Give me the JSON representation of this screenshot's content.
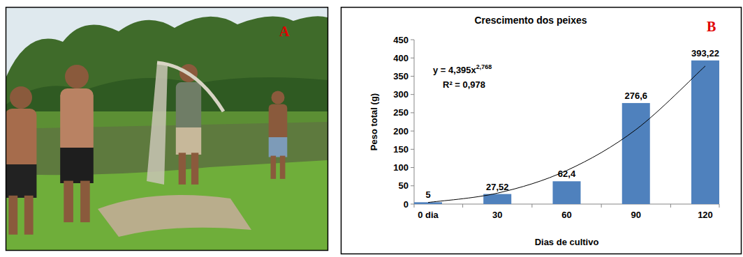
{
  "photo": {
    "label": "A"
  },
  "chart_data": {
    "type": "bar",
    "title": "Crescimento dos peixes",
    "x_label": "Dias de cultivo",
    "y_label": "Peso total (g)",
    "categories": [
      "0 dia",
      "30",
      "60",
      "90",
      "120"
    ],
    "series": [
      {
        "type": "bar",
        "color": "#4f81bd",
        "values": [
          5,
          27.52,
          62.4,
          276.6,
          393.22
        ],
        "value_labels": [
          "5",
          "27,52",
          "62,4",
          "276,6",
          "393,22"
        ]
      },
      {
        "type": "line",
        "color": "#000000",
        "marker": "none",
        "line_style": "solid",
        "values": [
          4.4,
          29.9,
          91.9,
          204,
          378
        ]
      }
    ],
    "ylim": [
      0,
      450
    ],
    "yticks": [
      0,
      50,
      100,
      150,
      200,
      250,
      300,
      350,
      400,
      450
    ],
    "grid": false,
    "data_labels": true,
    "annotations": [
      {
        "text": "y = 4,395x",
        "sup": "2,768"
      },
      {
        "text": "R² = 0,978"
      },
      {
        "text": "B"
      }
    ]
  }
}
